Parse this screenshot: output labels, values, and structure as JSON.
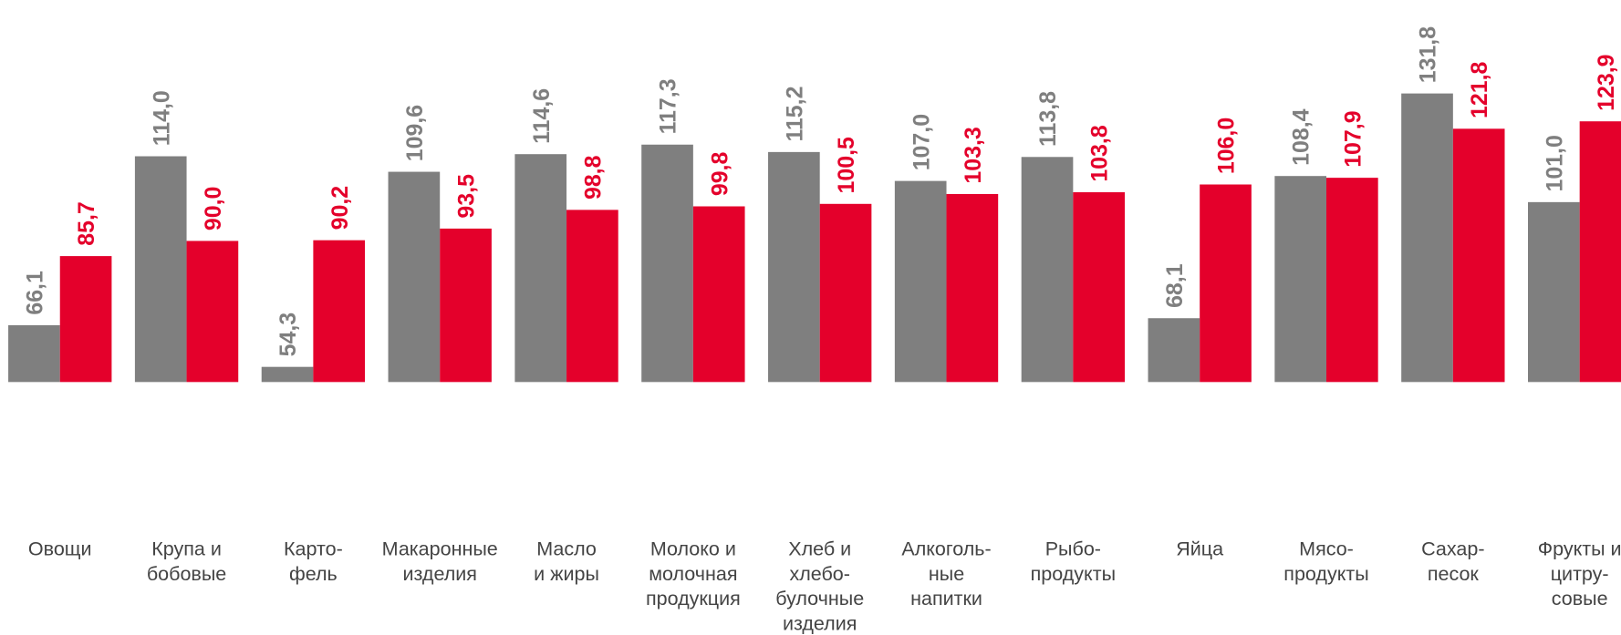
{
  "chart_data": {
    "type": "bar",
    "categories": [
      [
        "Овощи"
      ],
      [
        "Крупа и",
        "бобовые"
      ],
      [
        "Карто-",
        "фель"
      ],
      [
        "Макаронные",
        "изделия"
      ],
      [
        "Масло",
        "и жиры"
      ],
      [
        "Молоко и",
        "молочная",
        "продукция"
      ],
      [
        "Хлеб и",
        "хлебо-",
        "булочные",
        "изделия"
      ],
      [
        "Алкоголь-",
        "ные",
        "напитки"
      ],
      [
        "Рыбо-",
        "продукты"
      ],
      [
        "Яйца"
      ],
      [
        "Мясо-",
        "продукты"
      ],
      [
        "Сахар-",
        "песок"
      ],
      [
        "Фрукты и",
        "цитру-",
        "совые"
      ]
    ],
    "series": [
      {
        "color": "#7f7f7f",
        "values": [
          66.1,
          114.0,
          54.3,
          109.6,
          114.6,
          117.3,
          115.2,
          107.0,
          113.8,
          68.1,
          108.4,
          131.8,
          101.0
        ],
        "value_labels": [
          "66,1",
          "114,0",
          "54,3",
          "109,6",
          "114,6",
          "117,3",
          "115,2",
          "107,0",
          "113,8",
          "68,1",
          "108,4",
          "131,8",
          "101,0"
        ]
      },
      {
        "color": "#e4002b",
        "values": [
          85.7,
          90.0,
          90.2,
          93.5,
          98.8,
          99.8,
          100.5,
          103.3,
          103.8,
          106.0,
          107.9,
          121.8,
          123.9
        ],
        "value_labels": [
          "85,7",
          "90,0",
          "90,2",
          "93,5",
          "98,8",
          "99,8",
          "100,5",
          "103,3",
          "103,8",
          "106,0",
          "107,9",
          "121,8",
          "123,9"
        ]
      }
    ],
    "ylim": [
      50,
      158
    ]
  }
}
